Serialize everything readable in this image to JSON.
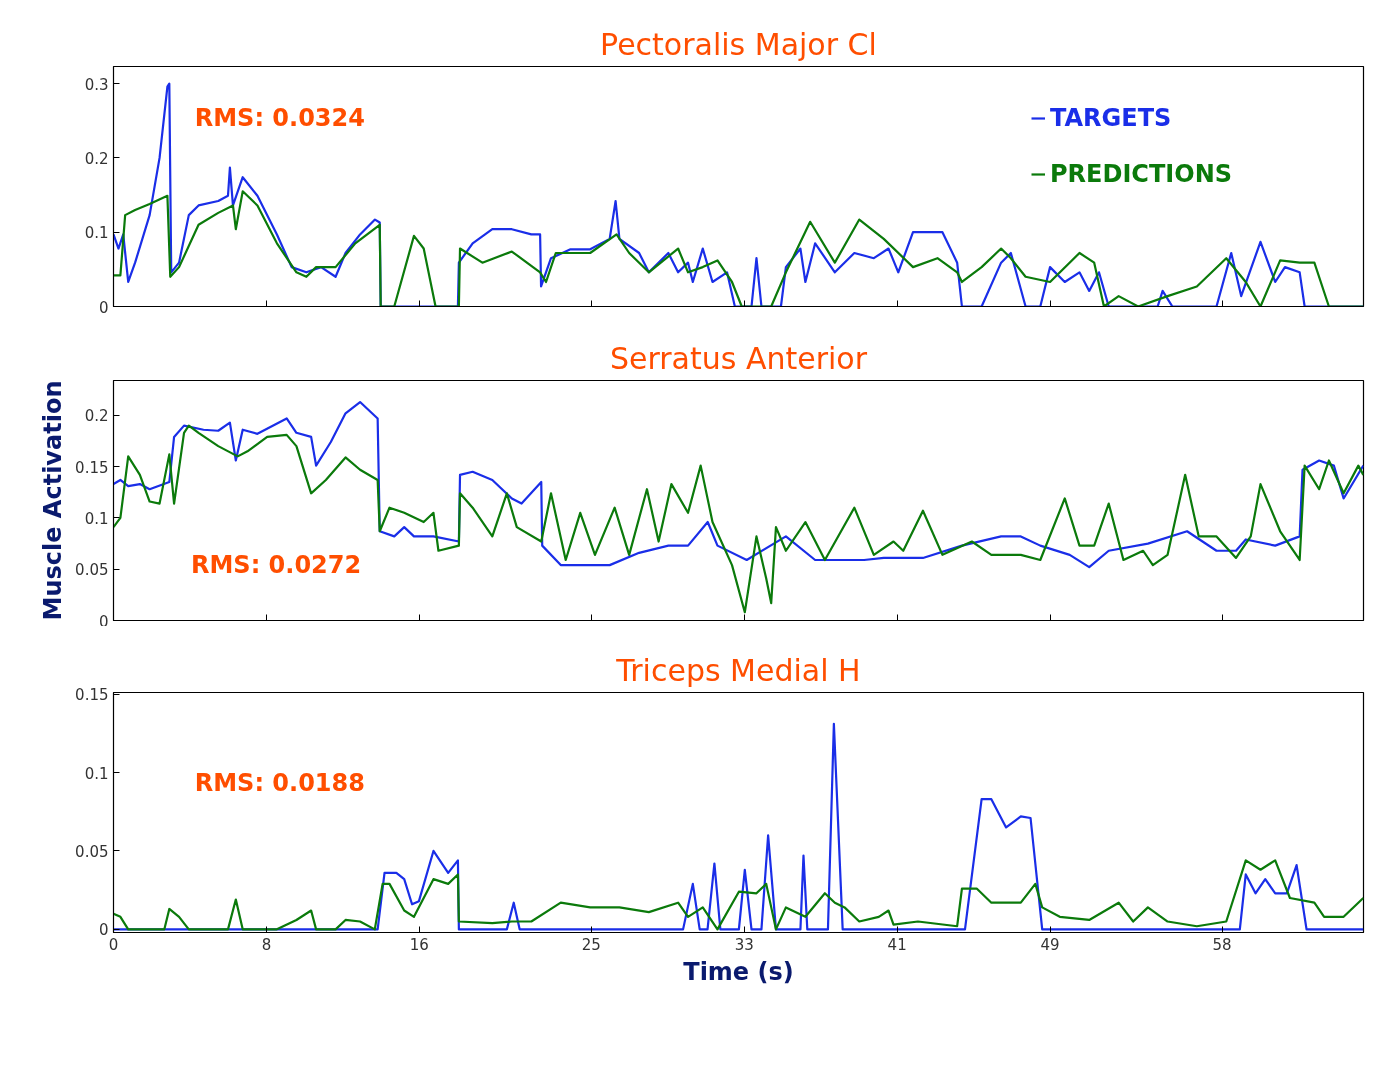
{
  "chart_data": [
    {
      "type": "line",
      "title": "Pectoralis Major Cl",
      "xlim": [
        0,
        65.4
      ],
      "xticks": [
        0,
        8,
        16,
        25,
        33,
        41,
        49,
        58
      ],
      "ylim": [
        0,
        0.323
      ],
      "yticks": [
        0,
        0.1,
        0.2,
        0.3
      ],
      "tick_labels": "y",
      "grid": false,
      "legend": "top right",
      "line_style": "solid",
      "annotations": [
        "RMS:  0.0324"
      ],
      "series": [
        {
          "name": "TARGETS",
          "color": "#1a2ee8",
          "x": [
            0,
            0.26,
            0.51,
            0.77,
            1.13,
            1.89,
            2.41,
            2.82,
            2.92,
            3.02,
            3.43,
            3.94,
            4.45,
            5.48,
            5.99,
            6.09,
            6.25,
            6.76,
            7.53,
            8.55,
            9.32,
            10.09,
            10.86,
            11.62,
            12.14,
            12.9,
            13.68,
            13.93,
            13.98,
            18.02,
            18.07,
            18.79,
            19.82,
            20.84,
            21.86,
            22.32,
            22.37,
            22.89,
            23.91,
            24.94,
            25.96,
            26.27,
            26.47,
            27.5,
            28.01,
            29.03,
            29.54,
            30.06,
            30.31,
            30.83,
            31.34,
            32.1,
            32.51,
            33.38,
            33.64,
            33.9,
            34.92,
            35.18,
            35.94,
            36.2,
            36.71,
            37.74,
            38.76,
            39.78,
            40.55,
            41.06,
            41.83,
            43.37,
            44.14,
            44.39,
            45.42,
            46.44,
            46.95,
            47.72,
            48.49,
            49.0,
            49.77,
            50.54,
            51.05,
            51.56,
            52.07,
            54.63,
            54.89,
            55.4,
            57.71,
            58.48,
            59.0,
            60.01,
            60.78,
            61.29,
            62.06,
            62.32,
            65.39
          ],
          "values": [
            0.097,
            0.078,
            0.097,
            0.033,
            0.059,
            0.123,
            0.2,
            0.296,
            0.3,
            0.046,
            0.059,
            0.123,
            0.136,
            0.142,
            0.149,
            0.187,
            0.136,
            0.174,
            0.149,
            0.097,
            0.053,
            0.046,
            0.053,
            0.04,
            0.072,
            0.097,
            0.117,
            0.113,
            0,
            0,
            0.059,
            0.085,
            0.104,
            0.104,
            0.097,
            0.097,
            0.027,
            0.065,
            0.077,
            0.077,
            0.091,
            0.142,
            0.091,
            0.072,
            0.046,
            0.072,
            0.046,
            0.059,
            0.033,
            0.078,
            0.033,
            0.046,
            0,
            0,
            0.065,
            0,
            0,
            0.053,
            0.078,
            0.033,
            0.085,
            0.046,
            0.072,
            0.065,
            0.078,
            0.046,
            0.1,
            0.1,
            0.059,
            0,
            0,
            0.059,
            0.072,
            0,
            0,
            0.053,
            0.033,
            0.046,
            0.021,
            0.046,
            0,
            0,
            0.021,
            0,
            0,
            0.072,
            0.014,
            0.087,
            0.033,
            0.053,
            0.046,
            0,
            0
          ]
        },
        {
          "name": "PREDICTIONS",
          "color": "#0b7a0b",
          "x": [
            0,
            0.36,
            0.61,
            1.13,
            1.89,
            2.82,
            2.97,
            3.43,
            4.45,
            5.48,
            6.25,
            6.4,
            6.76,
            7.53,
            8.55,
            9.57,
            10.09,
            10.6,
            11.62,
            12.65,
            13.93,
            13.98,
            14.69,
            15.72,
            16.23,
            16.85,
            18.07,
            18.13,
            19.3,
            20.84,
            22.32,
            22.63,
            23.14,
            24.94,
            26.32,
            26.98,
            28.01,
            29.54,
            30.06,
            30.83,
            31.6,
            32.36,
            32.87,
            34.41,
            35.18,
            36.45,
            37.74,
            39.02,
            40.3,
            41.83,
            43.11,
            44.14,
            44.39,
            45.42,
            46.44,
            46.95,
            47.72,
            49.0,
            50.54,
            51.31,
            51.82,
            52.59,
            53.61,
            55.15,
            56.68,
            58.22,
            59.24,
            60.01,
            61.04,
            62.06,
            62.83,
            63.59,
            65.39
          ],
          "values": [
            0.042,
            0.042,
            0.123,
            0.13,
            0.138,
            0.149,
            0.04,
            0.053,
            0.11,
            0.126,
            0.136,
            0.104,
            0.155,
            0.136,
            0.085,
            0.046,
            0.04,
            0.053,
            0.053,
            0.085,
            0.11,
            0,
            0,
            0.095,
            0.078,
            0,
            0,
            0.078,
            0.059,
            0.074,
            0.046,
            0.033,
            0.072,
            0.072,
            0.097,
            0.072,
            0.046,
            0.078,
            0.046,
            0.053,
            0.062,
            0.033,
            0,
            0,
            0.046,
            0.114,
            0.059,
            0.117,
            0.091,
            0.053,
            0.065,
            0.046,
            0.033,
            0.053,
            0.078,
            0.065,
            0.04,
            0.033,
            0.072,
            0.059,
            0,
            0.014,
            0,
            0.014,
            0.027,
            0.065,
            0.033,
            0,
            0.062,
            0.059,
            0.059,
            0,
            0
          ]
        }
      ]
    },
    {
      "type": "line",
      "title": "Serratus Anterior",
      "ylabel": "Muscle Activation",
      "xlim": [
        0,
        65.4
      ],
      "xticks": [
        0,
        8,
        16,
        25,
        33,
        41,
        49,
        58
      ],
      "ylim": [
        0,
        0.234
      ],
      "yticks": [
        0,
        0.05,
        0.1,
        0.15,
        0.2
      ],
      "tick_labels": "y",
      "grid": false,
      "line_style": "solid",
      "annotations": [
        "RMS:  0.0272"
      ],
      "series": [
        {
          "color": "#1a2ee8",
          "x": [
            0,
            0.36,
            0.77,
            1.38,
            1.89,
            2.92,
            3.17,
            3.69,
            4.71,
            5.48,
            6.09,
            6.4,
            6.76,
            7.53,
            9.06,
            9.57,
            10.34,
            10.6,
            11.37,
            12.14,
            12.9,
            13.82,
            13.93,
            14.69,
            15.21,
            15.72,
            16.74,
            18.07,
            18.13,
            18.79,
            19.82,
            20.84,
            21.35,
            22.38,
            22.43,
            23.4,
            24.94,
            25.96,
            27.5,
            29.03,
            30.06,
            31.09,
            31.6,
            33.13,
            35.18,
            36.71,
            37.74,
            39.27,
            40.3,
            42.35,
            44.39,
            46.44,
            47.47,
            48.49,
            50.03,
            51.05,
            52.07,
            54.12,
            56.17,
            57.71,
            58.73,
            59.24,
            60.78,
            62.06,
            62.21,
            63.08,
            63.85,
            64.36,
            65.39
          ],
          "values": [
            0.133,
            0.137,
            0.131,
            0.133,
            0.128,
            0.135,
            0.179,
            0.19,
            0.186,
            0.185,
            0.193,
            0.156,
            0.186,
            0.182,
            0.197,
            0.183,
            0.179,
            0.151,
            0.174,
            0.202,
            0.213,
            0.197,
            0.087,
            0.082,
            0.091,
            0.082,
            0.082,
            0.077,
            0.142,
            0.145,
            0.137,
            0.119,
            0.114,
            0.135,
            0.073,
            0.054,
            0.054,
            0.054,
            0.066,
            0.073,
            0.073,
            0.096,
            0.073,
            0.059,
            0.082,
            0.059,
            0.059,
            0.059,
            0.061,
            0.061,
            0.073,
            0.082,
            0.082,
            0.073,
            0.064,
            0.052,
            0.068,
            0.075,
            0.087,
            0.068,
            0.068,
            0.079,
            0.073,
            0.082,
            0.147,
            0.156,
            0.151,
            0.119,
            0.151
          ]
        },
        {
          "color": "#0b7a0b",
          "x": [
            0,
            0.36,
            0.77,
            1.38,
            1.89,
            2.41,
            2.92,
            3.17,
            3.69,
            3.94,
            4.45,
            5.48,
            6.5,
            7.01,
            8.04,
            9.06,
            9.57,
            10.34,
            11.11,
            12.14,
            12.9,
            13.82,
            13.93,
            14.44,
            15.21,
            16.23,
            16.74,
            17.0,
            18.07,
            18.13,
            18.79,
            19.82,
            20.58,
            21.1,
            22.38,
            22.89,
            23.66,
            24.42,
            25.19,
            26.22,
            26.98,
            27.91,
            28.52,
            29.19,
            30.06,
            30.72,
            31.34,
            32.36,
            33.03,
            33.64,
            34.15,
            34.41,
            34.66,
            35.18,
            36.2,
            37.22,
            38.76,
            39.78,
            40.81,
            41.32,
            42.35,
            43.37,
            44.91,
            45.93,
            47.47,
            48.49,
            49.77,
            50.54,
            51.31,
            52.07,
            52.84,
            53.87,
            54.38,
            55.15,
            56.07,
            56.78,
            57.71,
            58.73,
            59.5,
            60.01,
            61.04,
            62.06,
            62.32,
            63.08,
            63.59,
            64.36,
            65.13,
            65.39
          ],
          "values": [
            0.091,
            0.1,
            0.16,
            0.142,
            0.116,
            0.114,
            0.162,
            0.114,
            0.183,
            0.19,
            0.183,
            0.17,
            0.16,
            0.165,
            0.179,
            0.181,
            0.17,
            0.124,
            0.137,
            0.159,
            0.147,
            0.137,
            0.087,
            0.11,
            0.105,
            0.096,
            0.105,
            0.068,
            0.073,
            0.124,
            0.11,
            0.082,
            0.124,
            0.091,
            0.077,
            0.124,
            0.059,
            0.105,
            0.064,
            0.11,
            0.064,
            0.128,
            0.077,
            0.133,
            0.105,
            0.151,
            0.096,
            0.054,
            0.008,
            0.082,
            0.041,
            0.017,
            0.091,
            0.068,
            0.096,
            0.059,
            0.11,
            0.064,
            0.077,
            0.068,
            0.107,
            0.064,
            0.077,
            0.064,
            0.064,
            0.059,
            0.119,
            0.073,
            0.073,
            0.114,
            0.059,
            0.068,
            0.054,
            0.064,
            0.142,
            0.082,
            0.082,
            0.061,
            0.082,
            0.133,
            0.087,
            0.059,
            0.151,
            0.128,
            0.156,
            0.124,
            0.151,
            0.142
          ]
        }
      ]
    },
    {
      "type": "line",
      "title": "Triceps Medial H",
      "xlabel": "Time (s)",
      "xlim": [
        0,
        65.4
      ],
      "xticks": [
        0,
        8,
        16,
        25,
        33,
        41,
        49,
        58
      ],
      "ylim": [
        -0.002,
        0.151
      ],
      "yticks": [
        0,
        0.05,
        0.1,
        0.15
      ],
      "grid": false,
      "line_style": "solid",
      "annotations": [
        "RMS: 0.0188"
      ],
      "series": [
        {
          "color": "#1a2ee8",
          "x": [
            0,
            13.82,
            14.18,
            14.8,
            15.21,
            15.62,
            15.98,
            16.74,
            17.51,
            18.02,
            18.07,
            20.58,
            20.94,
            21.25,
            29.8,
            30.31,
            30.67,
            31.08,
            31.44,
            31.75,
            32.72,
            33.03,
            33.38,
            33.9,
            34.25,
            34.66,
            35.94,
            36.1,
            36.3,
            37.38,
            37.69,
            38.15,
            44.55,
            45.42,
            45.93,
            46.7,
            47.47,
            47.98,
            48.59,
            58.93,
            59.24,
            59.75,
            60.26,
            60.78,
            61.39,
            61.9,
            62.42,
            65.39
          ],
          "values": [
            0,
            0,
            0.036,
            0.036,
            0.032,
            0.016,
            0.018,
            0.05,
            0.036,
            0.044,
            0,
            0,
            0.017,
            0,
            0,
            0.029,
            0,
            0,
            0.042,
            0,
            0,
            0.038,
            0,
            0,
            0.06,
            0,
            0,
            0.047,
            0,
            0,
            0.131,
            0,
            0,
            0.083,
            0.083,
            0.065,
            0.072,
            0.071,
            0,
            0,
            0.035,
            0.023,
            0.032,
            0.023,
            0.023,
            0.041,
            0,
            0
          ]
        },
        {
          "color": "#0b7a0b",
          "x": [
            0,
            0.36,
            0.77,
            2.66,
            2.92,
            3.43,
            3.94,
            5.99,
            6.4,
            6.76,
            8.55,
            9.57,
            10.34,
            10.6,
            11.62,
            12.14,
            12.9,
            13.67,
            14.08,
            14.44,
            15.21,
            15.72,
            16.74,
            17.51,
            18.02,
            18.07,
            19.82,
            20.84,
            21.86,
            23.4,
            24.94,
            26.47,
            28.01,
            29.54,
            30.06,
            30.83,
            31.6,
            32.72,
            33.64,
            34.15,
            34.66,
            35.18,
            36.2,
            37.22,
            37.74,
            38.25,
            39.02,
            40.04,
            40.55,
            40.81,
            42.09,
            44.14,
            44.39,
            45.16,
            45.93,
            47.47,
            48.23,
            48.59,
            49.51,
            51.05,
            52.59,
            53.35,
            54.12,
            55.15,
            56.68,
            58.22,
            59.24,
            60.01,
            60.78,
            61.55,
            62.83,
            63.34,
            64.36,
            65.13,
            65.39
          ],
          "values": [
            0.01,
            0.008,
            0,
            0,
            0.013,
            0.008,
            0,
            0,
            0.019,
            0,
            0,
            0.006,
            0.012,
            0,
            0,
            0.006,
            0.005,
            0,
            0.029,
            0.029,
            0.012,
            0.008,
            0.032,
            0.029,
            0.035,
            0.005,
            0.004,
            0.005,
            0.005,
            0.017,
            0.014,
            0.014,
            0.011,
            0.017,
            0.008,
            0.014,
            0,
            0.024,
            0.023,
            0.029,
            0,
            0.014,
            0.008,
            0.023,
            0.017,
            0.014,
            0.005,
            0.008,
            0.012,
            0.003,
            0.005,
            0.002,
            0.026,
            0.026,
            0.017,
            0.017,
            0.029,
            0.014,
            0.008,
            0.006,
            0.017,
            0.005,
            0.014,
            0.005,
            0.002,
            0.005,
            0.044,
            0.038,
            0.044,
            0.02,
            0.017,
            0.008,
            0.008,
            0.017,
            0.02
          ]
        }
      ]
    }
  ]
}
